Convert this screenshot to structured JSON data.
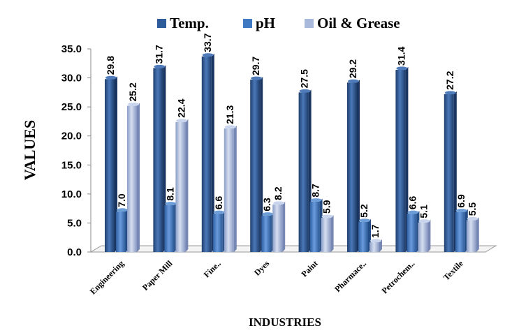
{
  "chart_data": {
    "type": "bar",
    "categories": [
      "Engineering",
      "Paper Mill",
      "Fine..",
      "Dyes",
      "Paint",
      "Pharmace..",
      "Petrochem..",
      "Textile"
    ],
    "series": [
      {
        "name": "Temp.",
        "values": [
          29.8,
          31.7,
          33.7,
          29.7,
          27.5,
          29.2,
          31.4,
          27.2
        ],
        "labels": [
          "29.8",
          "31.7",
          "33.7",
          "29.7",
          "27.5",
          "29.2",
          "31.4",
          "27.2"
        ],
        "color": "#2E5C9A"
      },
      {
        "name": "pH",
        "values": [
          7.0,
          8.1,
          6.6,
          6.3,
          8.7,
          5.2,
          6.6,
          6.9
        ],
        "labels": [
          "7.0",
          "8.1",
          "6.6",
          "6.3",
          "8.7",
          "5.2",
          "6.6",
          "6.9"
        ],
        "color": "#3F78C3"
      },
      {
        "name": "Oil & Grease",
        "values": [
          25.2,
          22.4,
          21.3,
          8.2,
          5.9,
          1.7,
          5.1,
          5.5
        ],
        "labels": [
          "25.2",
          "22.4",
          "21.3",
          "8.2",
          "5.9",
          "1.7",
          "5.1",
          "5.5"
        ],
        "color": "#A9B9DC"
      }
    ],
    "yticks": [
      "0.0",
      "5.0",
      "10.0",
      "15.0",
      "20.0",
      "25.0",
      "30.0",
      "35.0"
    ],
    "ylim": [
      0,
      35
    ],
    "xlabel": "INDUSTRIES",
    "ylabel": "VALUES",
    "legend": "top",
    "grid": false
  }
}
